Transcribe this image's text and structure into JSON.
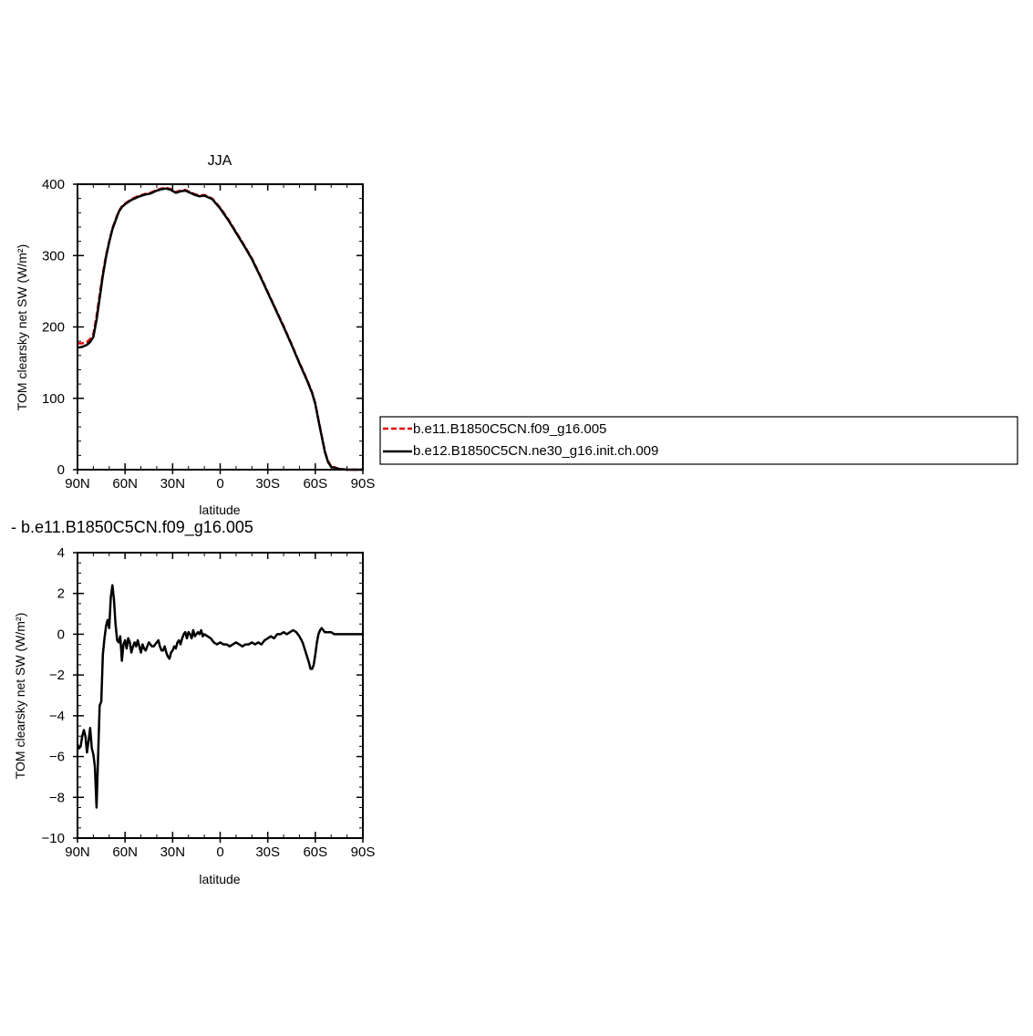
{
  "chart_data": [
    {
      "type": "line",
      "title": "JJA",
      "subtitle": "",
      "xlabel": "latitude",
      "ylabel": "TOM clearsky net SW (W/m²)",
      "xlim": [
        90,
        -90
      ],
      "ylim": [
        0,
        400
      ],
      "x_ticks": [
        90,
        60,
        30,
        0,
        -30,
        -60,
        -90
      ],
      "x_tick_labels": [
        "90N",
        "60N",
        "30N",
        "0",
        "30S",
        "60S",
        "90S"
      ],
      "y_ticks": [
        0,
        100,
        200,
        300,
        400
      ],
      "y_tick_labels": [
        "0",
        "100",
        "200",
        "300",
        "400"
      ],
      "grid": false,
      "legend_position": "right",
      "series": [
        {
          "name": "b.e11.B1850C5CN.f09_g16.005",
          "color": "#e00000",
          "dash": "dashed",
          "x": [
            90,
            87,
            84,
            82,
            80,
            78,
            76,
            74,
            72,
            70,
            68,
            66,
            64,
            62,
            60,
            56,
            52,
            48,
            44,
            40,
            37,
            34,
            31,
            28,
            25,
            22,
            19,
            16,
            13,
            10,
            5,
            0,
            -5,
            -10,
            -15,
            -20,
            -25,
            -30,
            -35,
            -40,
            -45,
            -50,
            -55,
            -58,
            -60,
            -62,
            -64,
            -66,
            -68,
            -70,
            -75,
            -80,
            -85,
            -90
          ],
          "values": [
            177,
            177,
            179,
            183,
            190,
            215,
            245,
            275,
            300,
            320,
            338,
            350,
            362,
            369,
            373,
            379,
            383,
            386,
            388,
            392,
            394,
            395,
            393,
            389,
            391,
            392,
            389,
            386,
            384,
            385,
            380,
            367,
            351,
            333,
            315,
            296,
            273,
            249,
            225,
            201,
            176,
            150,
            125,
            108,
            93,
            70,
            48,
            26,
            12,
            5,
            1,
            0,
            0,
            0
          ]
        },
        {
          "name": "b.e12.B1850C5CN.ne30_g16.init.ch.009",
          "color": "#000000",
          "dash": "solid",
          "x": [
            90,
            87,
            84,
            82,
            80,
            78,
            76,
            74,
            72,
            70,
            68,
            66,
            64,
            62,
            60,
            56,
            52,
            48,
            44,
            40,
            37,
            34,
            31,
            28,
            25,
            22,
            19,
            16,
            13,
            10,
            5,
            0,
            -5,
            -10,
            -15,
            -20,
            -25,
            -30,
            -35,
            -40,
            -45,
            -50,
            -55,
            -58,
            -60,
            -62,
            -64,
            -66,
            -68,
            -70,
            -75,
            -80,
            -85,
            -90
          ],
          "values": [
            171,
            172,
            175,
            179,
            186,
            210,
            240,
            272,
            298,
            319,
            337,
            349,
            361,
            368,
            372,
            378,
            382,
            385,
            387,
            391,
            393,
            394,
            392,
            388,
            390,
            391,
            388,
            385,
            383,
            384,
            379,
            366,
            350,
            332,
            314,
            295,
            272,
            248,
            224,
            200,
            175,
            149,
            124,
            107,
            92,
            69,
            47,
            25,
            11,
            4,
            1,
            0,
            0,
            0
          ]
        }
      ]
    },
    {
      "type": "line",
      "title": "- b.e11.B1850C5CN.f09_g16.005",
      "xlabel": "latitude",
      "ylabel": "TOM clearsky net SW (W/m²)",
      "xlim": [
        90,
        -90
      ],
      "ylim": [
        -10,
        4
      ],
      "x_ticks": [
        90,
        60,
        30,
        0,
        -30,
        -60,
        -90
      ],
      "x_tick_labels": [
        "90N",
        "60N",
        "30N",
        "0",
        "30S",
        "60S",
        "90S"
      ],
      "y_ticks": [
        -10,
        -8,
        -6,
        -4,
        -2,
        0,
        2,
        4
      ],
      "y_tick_labels": [
        "−10",
        "−8",
        "−6",
        "−4",
        "−2",
        "0",
        "2",
        "4"
      ],
      "grid": false,
      "series": [
        {
          "color": "#000000",
          "dash": "solid",
          "x": [
            90,
            89,
            88,
            87,
            86,
            85,
            84,
            83,
            82,
            81,
            80,
            79,
            78,
            77,
            76,
            75,
            74,
            73,
            72,
            71,
            70,
            69,
            68,
            67,
            66,
            65,
            64,
            63,
            62,
            61,
            60,
            59,
            58,
            57,
            56,
            55,
            54,
            53,
            52,
            51,
            50,
            49,
            48,
            47,
            46,
            45,
            44,
            43,
            42,
            41,
            40,
            39,
            38,
            37,
            36,
            35,
            34,
            33,
            32,
            31,
            30,
            29,
            28,
            27,
            26,
            25,
            24,
            23,
            22,
            21,
            20,
            19,
            18,
            17,
            16,
            15,
            14,
            13,
            12,
            11,
            10,
            8,
            6,
            4,
            2,
            0,
            -2,
            -4,
            -6,
            -8,
            -10,
            -12,
            -14,
            -16,
            -18,
            -20,
            -22,
            -24,
            -26,
            -28,
            -30,
            -32,
            -34,
            -36,
            -38,
            -40,
            -42,
            -44,
            -46,
            -48,
            -50,
            -52,
            -54,
            -56,
            -57,
            -58,
            -59,
            -60,
            -61,
            -62,
            -63,
            -64,
            -65,
            -66,
            -68,
            -70,
            -72,
            -75,
            -80,
            -85,
            -90
          ],
          "values": [
            -5.4,
            -5.6,
            -5.5,
            -5.0,
            -4.7,
            -5.0,
            -5.8,
            -5.2,
            -4.6,
            -5.6,
            -5.9,
            -6.5,
            -8.5,
            -6.0,
            -3.5,
            -3.3,
            -1.0,
            -0.2,
            0.4,
            0.7,
            0.3,
            1.8,
            2.4,
            1.7,
            0.5,
            -0.3,
            -0.4,
            -0.1,
            -1.3,
            -0.5,
            -0.3,
            -0.7,
            -0.2,
            -0.4,
            -0.9,
            -0.6,
            -0.4,
            -0.6,
            -0.3,
            -0.6,
            -0.9,
            -0.5,
            -0.7,
            -0.8,
            -0.6,
            -0.4,
            -0.5,
            -0.6,
            -0.6,
            -0.5,
            -0.4,
            -0.3,
            -0.6,
            -0.8,
            -0.8,
            -0.6,
            -0.9,
            -1.1,
            -1.2,
            -0.9,
            -0.8,
            -0.6,
            -0.7,
            -0.4,
            -0.3,
            -0.5,
            -0.2,
            0.0,
            0.1,
            -0.2,
            0.1,
            0.0,
            -0.2,
            0.2,
            -0.1,
            0.0,
            0.1,
            0.0,
            0.2,
            -0.1,
            0.0,
            -0.1,
            -0.2,
            -0.4,
            -0.5,
            -0.4,
            -0.5,
            -0.5,
            -0.6,
            -0.5,
            -0.4,
            -0.5,
            -0.6,
            -0.5,
            -0.5,
            -0.4,
            -0.5,
            -0.4,
            -0.5,
            -0.3,
            -0.2,
            -0.1,
            -0.2,
            0.0,
            0.0,
            0.1,
            0.0,
            0.1,
            0.2,
            0.1,
            -0.1,
            -0.4,
            -0.9,
            -1.4,
            -1.7,
            -1.7,
            -1.5,
            -1.0,
            -0.4,
            0.0,
            0.2,
            0.3,
            0.2,
            0.1,
            0.1,
            0.1,
            0.0,
            0.0,
            0.0,
            0.0,
            0.0
          ]
        }
      ]
    }
  ]
}
